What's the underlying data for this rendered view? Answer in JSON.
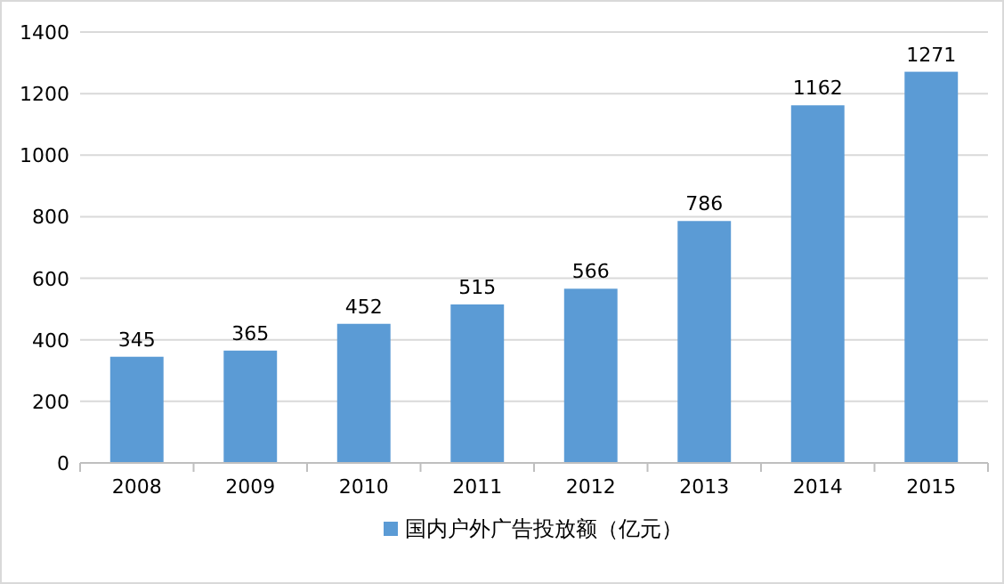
{
  "chart_data": {
    "type": "bar",
    "categories": [
      "2008",
      "2009",
      "2010",
      "2011",
      "2012",
      "2013",
      "2014",
      "2015"
    ],
    "series": [
      {
        "name": "国内户外广告投放额（亿元）",
        "color": "#5b9bd5",
        "values": [
          345,
          365,
          452,
          515,
          566,
          786,
          1162,
          1271
        ]
      }
    ],
    "ylim": [
      0,
      1400
    ],
    "yticks": [
      0,
      200,
      400,
      600,
      800,
      1000,
      1200,
      1400
    ],
    "grid": "y",
    "legend": "bottom",
    "data_labels": true
  }
}
